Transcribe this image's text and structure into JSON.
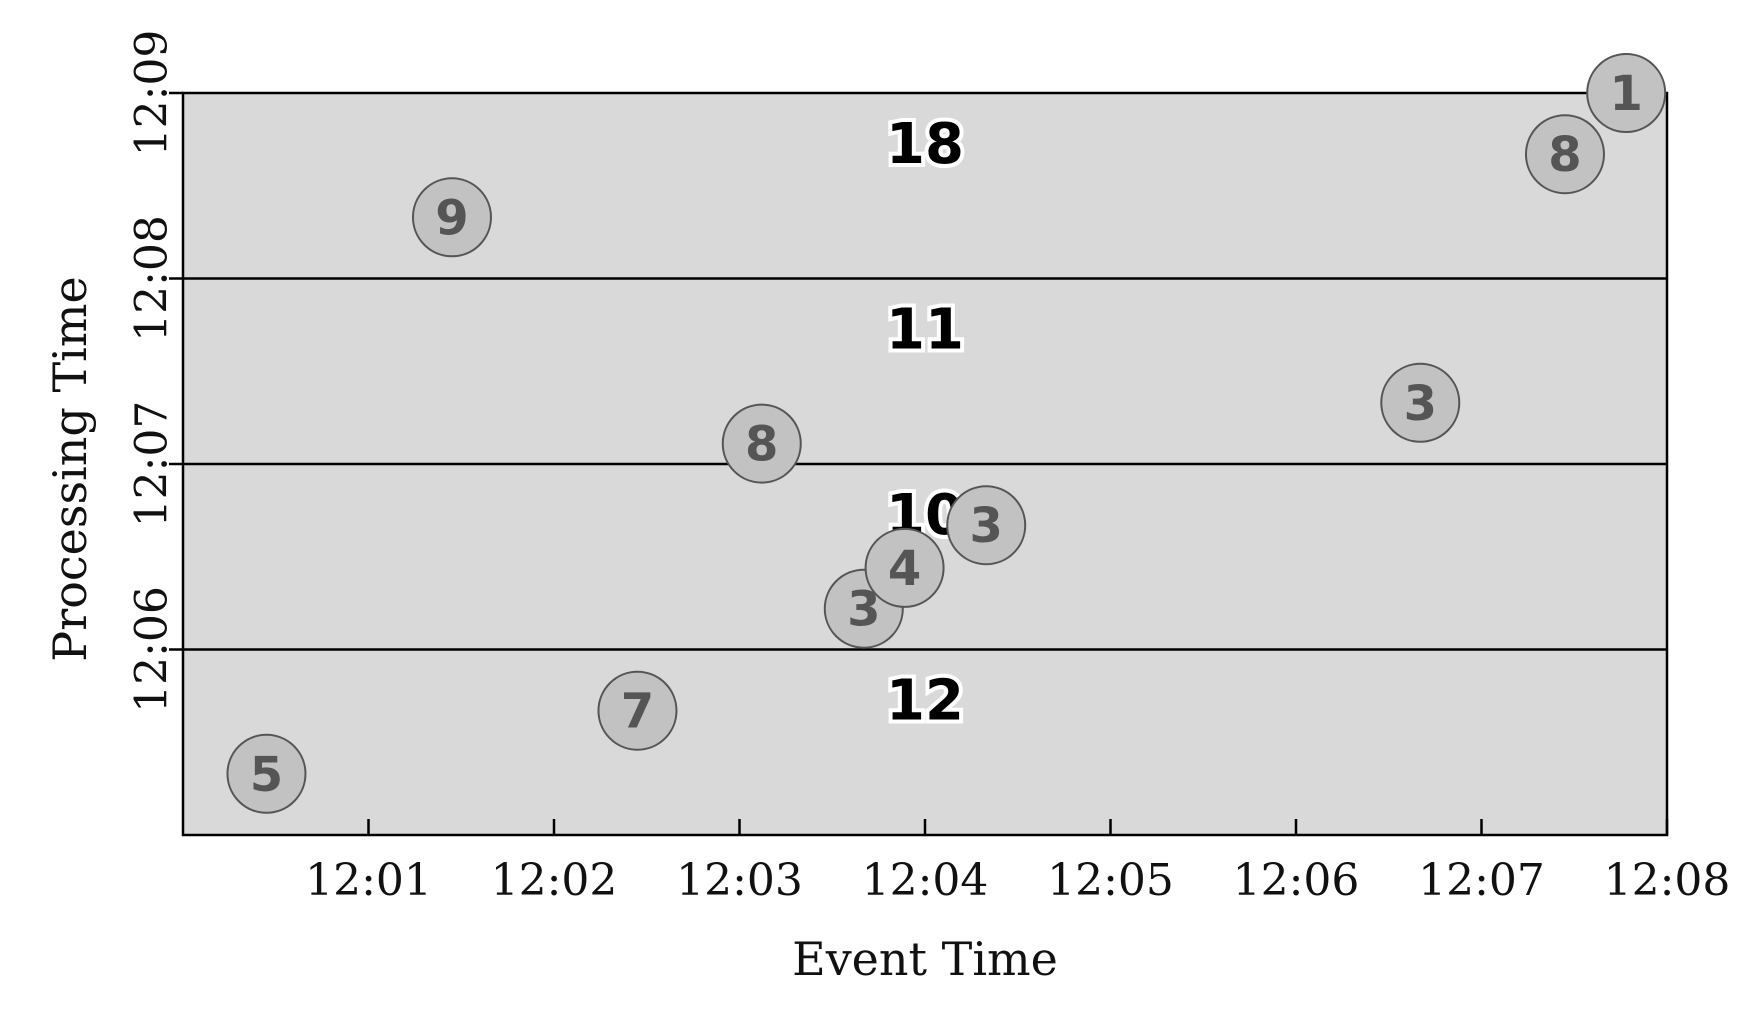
{
  "chart_data": {
    "type": "scatter",
    "xlabel": "Event Time",
    "ylabel": "Processing Time",
    "x_unit": "minutes past 12:00",
    "y_unit": "minutes past 12:00",
    "xlim": [
      0,
      8
    ],
    "ylim": [
      5,
      9
    ],
    "x_ticks": [
      {
        "value": 1,
        "label": "12:01"
      },
      {
        "value": 2,
        "label": "12:02"
      },
      {
        "value": 3,
        "label": "12:03"
      },
      {
        "value": 4,
        "label": "12:04"
      },
      {
        "value": 5,
        "label": "12:05"
      },
      {
        "value": 6,
        "label": "12:06"
      },
      {
        "value": 7,
        "label": "12:07"
      },
      {
        "value": 8,
        "label": "12:08"
      }
    ],
    "y_ticks": [
      {
        "value": 6,
        "label": "12:06"
      },
      {
        "value": 7,
        "label": "12:07"
      },
      {
        "value": 8,
        "label": "12:08"
      },
      {
        "value": 9,
        "label": "12:09"
      }
    ],
    "grid": "horizontal lines at y ticks",
    "background_color": "#d9d9d9",
    "panes": [
      {
        "y_from": 8,
        "y_to": 9,
        "x": 4,
        "label": "18"
      },
      {
        "y_from": 7,
        "y_to": 8,
        "x": 4,
        "label": "11"
      },
      {
        "y_from": 6,
        "y_to": 7,
        "x": 4,
        "label": "10"
      },
      {
        "y_from": 5,
        "y_to": 6,
        "x": 4,
        "label": "12"
      }
    ],
    "points": [
      {
        "x": 0.45,
        "y": 5.33,
        "label": "5"
      },
      {
        "x": 1.45,
        "y": 8.33,
        "label": "9"
      },
      {
        "x": 2.45,
        "y": 5.67,
        "label": "7"
      },
      {
        "x": 3.12,
        "y": 7.11,
        "label": "8"
      },
      {
        "x": 3.67,
        "y": 6.22,
        "label": "3"
      },
      {
        "x": 3.89,
        "y": 6.44,
        "label": "4"
      },
      {
        "x": 4.33,
        "y": 6.67,
        "label": "3"
      },
      {
        "x": 6.67,
        "y": 7.33,
        "label": "3"
      },
      {
        "x": 7.45,
        "y": 8.67,
        "label": "8"
      },
      {
        "x": 7.78,
        "y": 9.0,
        "label": "1"
      }
    ]
  }
}
